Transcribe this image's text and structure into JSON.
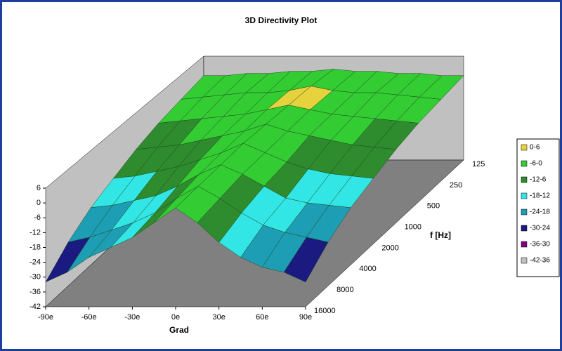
{
  "chart_data": {
    "type": "surface",
    "title": "3D Directivity Plot",
    "x_label": "Grad",
    "depth_label": "f [Hz]",
    "x": [
      -90,
      -75,
      -60,
      -45,
      -30,
      -15,
      0,
      15,
      30,
      45,
      60,
      75,
      90
    ],
    "xlim": [
      -90,
      90
    ],
    "xticks": [
      {
        "value": -90,
        "label": "-90e"
      },
      {
        "value": -60,
        "label": "-60e"
      },
      {
        "value": -30,
        "label": "-30e"
      },
      {
        "value": 0,
        "label": "0e"
      },
      {
        "value": 30,
        "label": "30e"
      },
      {
        "value": 60,
        "label": "60e"
      },
      {
        "value": 90,
        "label": "90e"
      }
    ],
    "categories": [
      "125",
      "250",
      "500",
      "1000",
      "2000",
      "4000",
      "8000",
      "16000"
    ],
    "z": [
      [
        -3,
        -3,
        -2,
        -2,
        -1,
        -1,
        0,
        -1,
        -1,
        -2,
        -2,
        -3,
        -3
      ],
      [
        -5,
        -4,
        -3,
        -2,
        -2,
        -1,
        1,
        -1,
        -2,
        -2,
        -3,
        -4,
        -5
      ],
      [
        -7,
        -6,
        -5,
        -4,
        -3,
        -1,
        1,
        -1,
        -3,
        -4,
        -5,
        -6,
        -7
      ],
      [
        -10,
        -9,
        -8,
        -6,
        -4,
        -2,
        1,
        -2,
        -4,
        -6,
        -8,
        -9,
        -10
      ],
      [
        -14,
        -13,
        -11,
        -9,
        -6,
        -3,
        1,
        -3,
        -7,
        -10,
        -12,
        -13,
        -14
      ],
      [
        -18,
        -17,
        -15,
        -13,
        -9,
        -4,
        0,
        -4,
        -9,
        -14,
        -16,
        -17,
        -18
      ],
      [
        -24,
        -22,
        -19,
        -16,
        -12,
        -6,
        -1,
        -6,
        -12,
        -17,
        -20,
        -22,
        -24
      ],
      [
        -32,
        -28,
        -22,
        -18,
        -14,
        -8,
        -2,
        -8,
        -16,
        -22,
        -26,
        -28,
        -32
      ]
    ],
    "zlim": [
      -42,
      6
    ],
    "zticks": [
      6,
      0,
      -6,
      -12,
      -18,
      -24,
      -30,
      -36,
      -42
    ],
    "bands": [
      {
        "label": "0-6",
        "range": [
          0,
          6
        ],
        "color": "#e6d23c"
      },
      {
        "label": "-6-0",
        "range": [
          -6,
          0
        ],
        "color": "#33cc33"
      },
      {
        "label": "-12-6",
        "range": [
          -12,
          -6
        ],
        "color": "#2e8b2e"
      },
      {
        "label": "-18-12",
        "range": [
          -18,
          -12
        ],
        "color": "#33e6e6"
      },
      {
        "label": "-24-18",
        "range": [
          -24,
          -18
        ],
        "color": "#1e9eb4"
      },
      {
        "label": "-30-24",
        "range": [
          -30,
          -24
        ],
        "color": "#1a1a80"
      },
      {
        "label": "-36-30",
        "range": [
          -36,
          -30
        ],
        "color": "#800080"
      },
      {
        "label": "-42-36",
        "range": [
          -42,
          -36
        ],
        "color": "#c0c0c0"
      }
    ]
  }
}
